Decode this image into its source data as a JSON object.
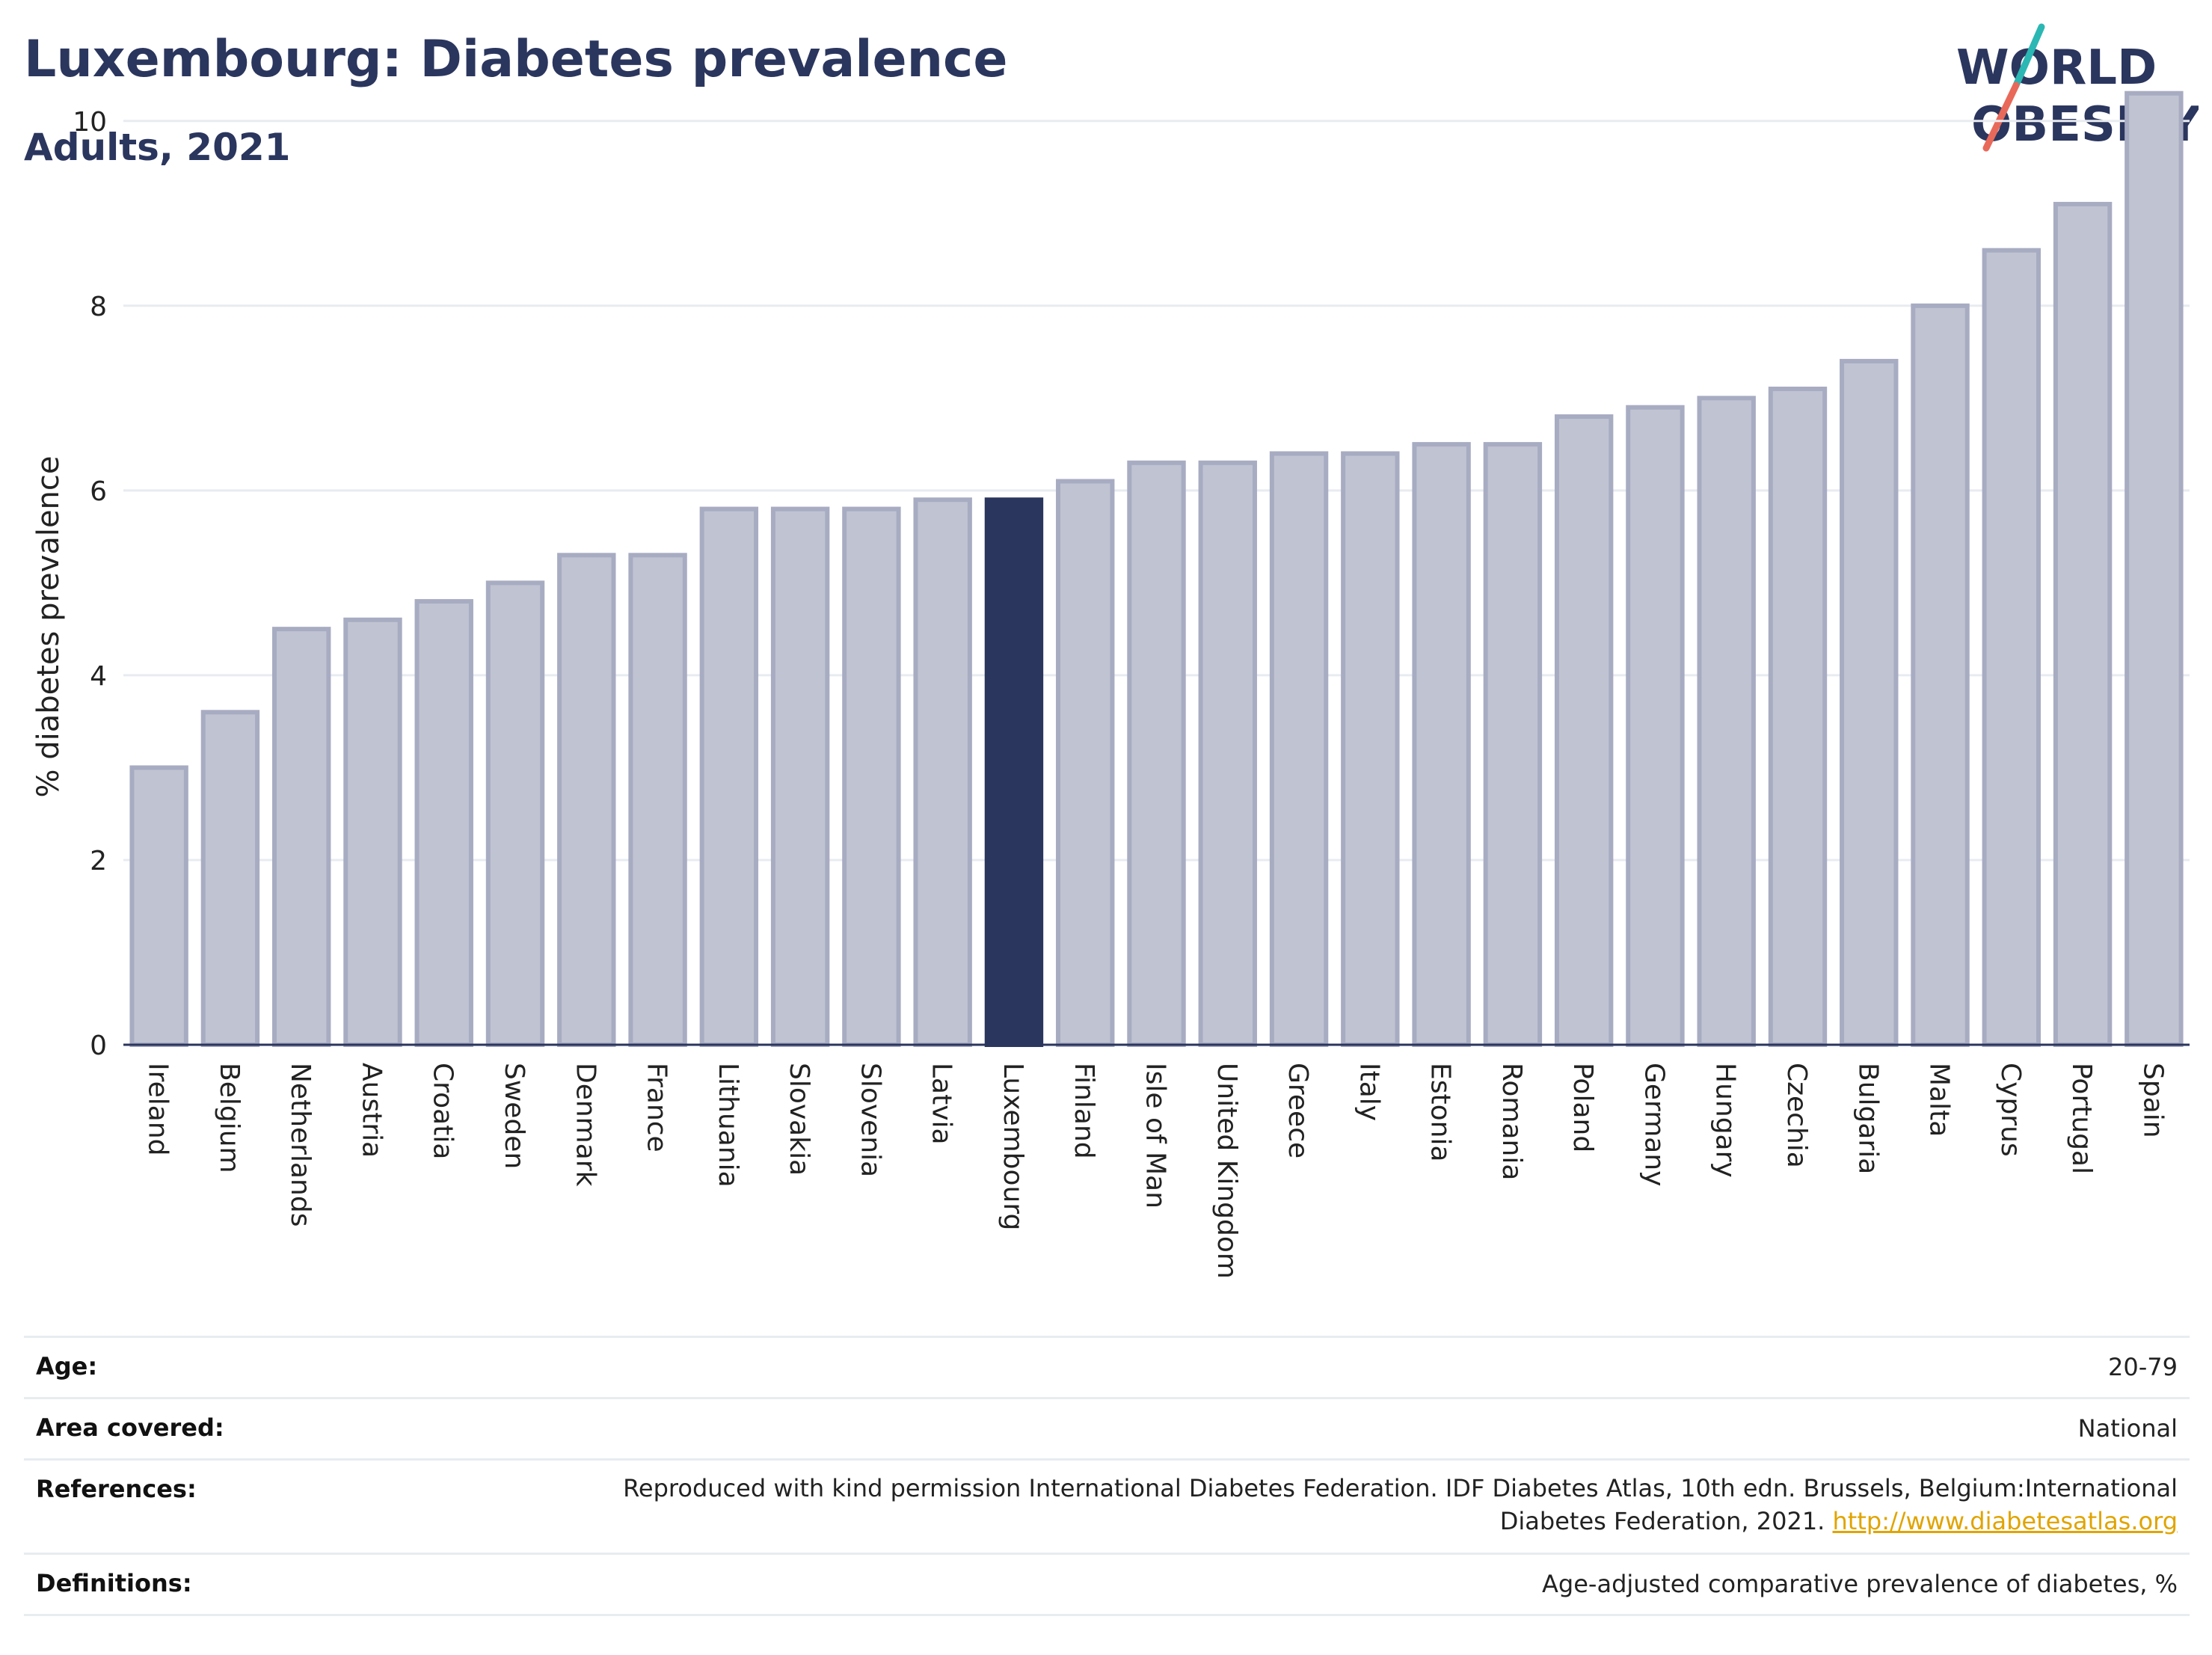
{
  "header": {
    "title": "Luxembourg: Diabetes prevalence",
    "subtitle": "Adults, 2021"
  },
  "logo": {
    "line1": "WORLD",
    "line2": "OBESITY",
    "colors": {
      "text": "#2b365e",
      "slash_top": "#2bb7b3",
      "slash_bottom": "#e8695a"
    }
  },
  "chart_data": {
    "type": "bar",
    "title": "Luxembourg: Diabetes prevalence",
    "subtitle": "Adults, 2021",
    "xlabel": "",
    "ylabel": "% diabetes prevalence",
    "ylim": [
      0,
      10.5
    ],
    "yticks": [
      0,
      2,
      4,
      6,
      8,
      10
    ],
    "grid": true,
    "highlight": "Luxembourg",
    "colors": {
      "bar": "#c0c3d1",
      "bar_border": "#a8acc2",
      "highlight": "#2b365e",
      "grid": "#e8ebf0",
      "axis": "#2b365e"
    },
    "categories": [
      "Ireland",
      "Belgium",
      "Netherlands",
      "Austria",
      "Croatia",
      "Sweden",
      "Denmark",
      "France",
      "Lithuania",
      "Slovakia",
      "Slovenia",
      "Latvia",
      "Luxembourg",
      "Finland",
      "Isle of Man",
      "United Kingdom",
      "Greece",
      "Italy",
      "Estonia",
      "Romania",
      "Poland",
      "Germany",
      "Hungary",
      "Czechia",
      "Bulgaria",
      "Malta",
      "Cyprus",
      "Portugal",
      "Spain"
    ],
    "values": [
      3.0,
      3.6,
      4.5,
      4.6,
      4.8,
      5.0,
      5.3,
      5.3,
      5.8,
      5.8,
      5.8,
      5.9,
      5.9,
      6.1,
      6.3,
      6.3,
      6.4,
      6.4,
      6.5,
      6.5,
      6.8,
      6.9,
      7.0,
      7.1,
      7.4,
      8.0,
      8.6,
      9.1,
      10.3
    ]
  },
  "meta": [
    {
      "label": "Age:",
      "value": "20-79"
    },
    {
      "label": "Area covered:",
      "value": "National"
    },
    {
      "label": "References:",
      "value": "Reproduced with kind permission International Diabetes Federation.  IDF Diabetes Atlas, 10th edn. Brussels, Belgium:International",
      "value2": "Diabetes Federation, 2021. ",
      "link": "http://www.diabetesatlas.org"
    },
    {
      "label": "Definitions:",
      "value": "Age-adjusted comparative prevalence of diabetes, %"
    }
  ]
}
